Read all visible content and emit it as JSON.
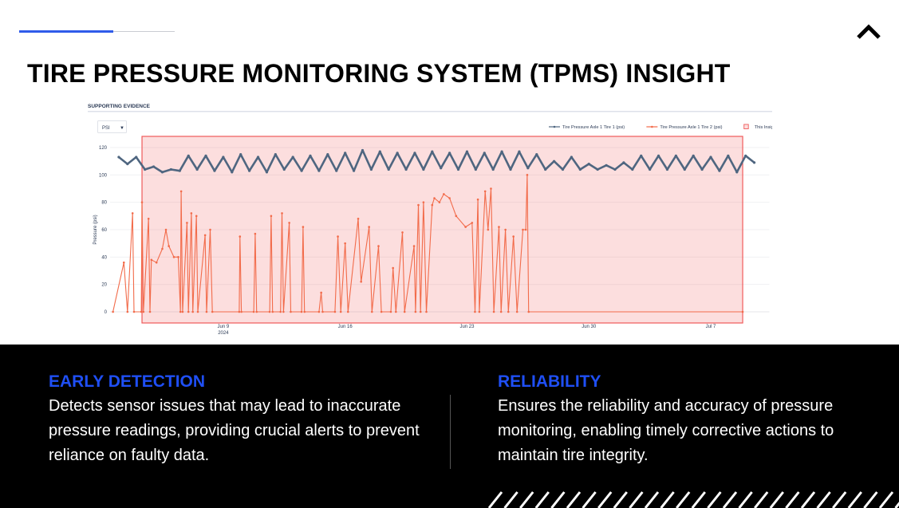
{
  "slide": {
    "title": "TIRE PRESSURE MONITORING SYSTEM (TPMS) INSIGHT",
    "icons": {
      "top_right": "chevron-up-icon"
    },
    "accent_color": "#1f4ff5"
  },
  "evidence": {
    "section_label": "SUPPORTING EVIDENCE",
    "unit_select": "PSI"
  },
  "chart_data": {
    "type": "line",
    "ylabel": "Pressure (psi)",
    "xlabel": "",
    "yticks": [
      0,
      20,
      40,
      60,
      80,
      100,
      120
    ],
    "ytick_labels": [
      "0",
      "20",
      "40",
      "60",
      "80",
      "100",
      "120"
    ],
    "xticks": [
      {
        "date": "2024-06-09 00:00",
        "label": "Jun 9",
        "sublabel": "2024"
      },
      {
        "date": "2024-06-16 00:00",
        "label": "Jun 16"
      },
      {
        "date": "2024-06-23 00:00",
        "label": "Jun 23"
      },
      {
        "date": "2024-06-30 00:00",
        "label": "Jun 30"
      },
      {
        "date": "2024-07-07 00:00",
        "label": "Jul 7"
      }
    ],
    "xlim": [
      "2024-06-02 12:00",
      "2024-07-10 00:00"
    ],
    "ylim": [
      0,
      123
    ],
    "grid": true,
    "legend_placement": "top-right",
    "highlight": {
      "name": "This Insight",
      "start": "2024-06-04 08:00",
      "end": "2024-07-08 20:00",
      "color": "#f05a5a"
    },
    "series": [
      {
        "name": "Tire Pressure Axle 1 Tire 1 (psi)",
        "color": "#4f6680",
        "points": [
          [
            "2024-06-03 00:00",
            113
          ],
          [
            "2024-06-03 12:00",
            108
          ],
          [
            "2024-06-04 00:00",
            113
          ],
          [
            "2024-06-04 12:00",
            104
          ],
          [
            "2024-06-05 00:00",
            106
          ],
          [
            "2024-06-05 12:00",
            102
          ],
          [
            "2024-06-06 00:00",
            104
          ],
          [
            "2024-06-06 12:00",
            103
          ],
          [
            "2024-06-07 00:00",
            114
          ],
          [
            "2024-06-07 12:00",
            104
          ],
          [
            "2024-06-08 00:00",
            114
          ],
          [
            "2024-06-08 12:00",
            103
          ],
          [
            "2024-06-09 00:00",
            113
          ],
          [
            "2024-06-09 12:00",
            102
          ],
          [
            "2024-06-10 00:00",
            115
          ],
          [
            "2024-06-10 12:00",
            103
          ],
          [
            "2024-06-11 00:00",
            113
          ],
          [
            "2024-06-11 12:00",
            102
          ],
          [
            "2024-06-12 00:00",
            115
          ],
          [
            "2024-06-12 12:00",
            104
          ],
          [
            "2024-06-13 00:00",
            113
          ],
          [
            "2024-06-13 12:00",
            103
          ],
          [
            "2024-06-14 00:00",
            114
          ],
          [
            "2024-06-14 12:00",
            103
          ],
          [
            "2024-06-15 00:00",
            115
          ],
          [
            "2024-06-15 12:00",
            103
          ],
          [
            "2024-06-16 00:00",
            116
          ],
          [
            "2024-06-16 12:00",
            103
          ],
          [
            "2024-06-17 00:00",
            118
          ],
          [
            "2024-06-17 12:00",
            104
          ],
          [
            "2024-06-18 00:00",
            117
          ],
          [
            "2024-06-18 12:00",
            104
          ],
          [
            "2024-06-19 00:00",
            116
          ],
          [
            "2024-06-19 12:00",
            104
          ],
          [
            "2024-06-20 00:00",
            116
          ],
          [
            "2024-06-20 12:00",
            104
          ],
          [
            "2024-06-21 00:00",
            117
          ],
          [
            "2024-06-21 12:00",
            105
          ],
          [
            "2024-06-22 00:00",
            116
          ],
          [
            "2024-06-22 12:00",
            104
          ],
          [
            "2024-06-23 00:00",
            117
          ],
          [
            "2024-06-23 12:00",
            104
          ],
          [
            "2024-06-24 00:00",
            116
          ],
          [
            "2024-06-24 12:00",
            104
          ],
          [
            "2024-06-25 00:00",
            117
          ],
          [
            "2024-06-25 12:00",
            104
          ],
          [
            "2024-06-26 00:00",
            117
          ],
          [
            "2024-06-26 12:00",
            105
          ],
          [
            "2024-06-27 00:00",
            115
          ],
          [
            "2024-06-27 12:00",
            104
          ],
          [
            "2024-06-28 00:00",
            110
          ],
          [
            "2024-06-28 12:00",
            104
          ],
          [
            "2024-06-29 00:00",
            113
          ],
          [
            "2024-06-29 12:00",
            104
          ],
          [
            "2024-06-30 00:00",
            108
          ],
          [
            "2024-06-30 12:00",
            104
          ],
          [
            "2024-07-01 00:00",
            107
          ],
          [
            "2024-07-01 12:00",
            104
          ],
          [
            "2024-07-02 00:00",
            109
          ],
          [
            "2024-07-02 12:00",
            104
          ],
          [
            "2024-07-03 00:00",
            114
          ],
          [
            "2024-07-03 12:00",
            104
          ],
          [
            "2024-07-04 00:00",
            114
          ],
          [
            "2024-07-04 12:00",
            104
          ],
          [
            "2024-07-05 00:00",
            114
          ],
          [
            "2024-07-05 12:00",
            104
          ],
          [
            "2024-07-06 00:00",
            114
          ],
          [
            "2024-07-06 12:00",
            104
          ],
          [
            "2024-07-07 00:00",
            113
          ],
          [
            "2024-07-07 12:00",
            103
          ],
          [
            "2024-07-08 00:00",
            114
          ],
          [
            "2024-07-08 12:00",
            102
          ],
          [
            "2024-07-09 00:00",
            114
          ],
          [
            "2024-07-09 12:00",
            109
          ]
        ]
      },
      {
        "name": "Tire Pressure Axle 1 Tire 2 (psi)",
        "color": "#f26b4a",
        "points": [
          [
            "2024-06-02 16:00",
            0
          ],
          [
            "2024-06-03 07:00",
            36
          ],
          [
            "2024-06-03 12:00",
            0
          ],
          [
            "2024-06-03 19:00",
            72
          ],
          [
            "2024-06-03 21:00",
            0
          ],
          [
            "2024-06-04 07:00",
            0
          ],
          [
            "2024-06-04 08:00",
            80
          ],
          [
            "2024-06-04 10:00",
            0
          ],
          [
            "2024-06-04 17:00",
            68
          ],
          [
            "2024-06-04 19:00",
            0
          ],
          [
            "2024-06-04 21:00",
            38
          ],
          [
            "2024-06-05 04:00",
            36
          ],
          [
            "2024-06-05 12:00",
            46
          ],
          [
            "2024-06-05 17:00",
            60
          ],
          [
            "2024-06-05 21:00",
            48
          ],
          [
            "2024-06-06 04:00",
            40
          ],
          [
            "2024-06-06 10:00",
            40
          ],
          [
            "2024-06-06 13:00",
            0
          ],
          [
            "2024-06-06 14:00",
            88
          ],
          [
            "2024-06-06 16:00",
            0
          ],
          [
            "2024-06-06 22:00",
            65
          ],
          [
            "2024-06-07 00:00",
            0
          ],
          [
            "2024-06-07 04:00",
            72
          ],
          [
            "2024-06-07 06:00",
            0
          ],
          [
            "2024-06-07 11:00",
            70
          ],
          [
            "2024-06-07 13:00",
            0
          ],
          [
            "2024-06-07 23:00",
            56
          ],
          [
            "2024-06-08 01:00",
            0
          ],
          [
            "2024-06-08 06:00",
            60
          ],
          [
            "2024-06-08 09:00",
            0
          ],
          [
            "2024-06-09 22:00",
            0
          ],
          [
            "2024-06-09 23:00",
            55
          ],
          [
            "2024-06-10 01:00",
            0
          ],
          [
            "2024-06-10 18:00",
            0
          ],
          [
            "2024-06-10 20:00",
            57
          ],
          [
            "2024-06-10 22:00",
            0
          ],
          [
            "2024-06-11 16:00",
            0
          ],
          [
            "2024-06-11 18:00",
            70
          ],
          [
            "2024-06-11 20:00",
            0
          ],
          [
            "2024-06-12 07:00",
            0
          ],
          [
            "2024-06-12 09:00",
            72
          ],
          [
            "2024-06-12 11:00",
            0
          ],
          [
            "2024-06-12 19:00",
            65
          ],
          [
            "2024-06-12 21:00",
            0
          ],
          [
            "2024-06-13 12:00",
            0
          ],
          [
            "2024-06-13 14:00",
            62
          ],
          [
            "2024-06-13 16:00",
            0
          ],
          [
            "2024-06-14 12:00",
            0
          ],
          [
            "2024-06-14 15:00",
            14
          ],
          [
            "2024-06-14 17:00",
            0
          ],
          [
            "2024-06-15 10:00",
            0
          ],
          [
            "2024-06-15 14:00",
            55
          ],
          [
            "2024-06-15 18:00",
            0
          ],
          [
            "2024-06-16 00:00",
            50
          ],
          [
            "2024-06-16 04:00",
            0
          ],
          [
            "2024-06-16 18:00",
            68
          ],
          [
            "2024-06-16 22:00",
            22
          ],
          [
            "2024-06-17 09:00",
            62
          ],
          [
            "2024-06-17 13:00",
            0
          ],
          [
            "2024-06-17 22:00",
            48
          ],
          [
            "2024-06-18 02:00",
            0
          ],
          [
            "2024-06-18 15:00",
            0
          ],
          [
            "2024-06-18 18:00",
            32
          ],
          [
            "2024-06-18 22:00",
            0
          ],
          [
            "2024-06-19 07:00",
            58
          ],
          [
            "2024-06-19 10:00",
            0
          ],
          [
            "2024-06-19 23:00",
            48
          ],
          [
            "2024-06-20 01:00",
            0
          ],
          [
            "2024-06-20 05:00",
            78
          ],
          [
            "2024-06-20 08:00",
            0
          ],
          [
            "2024-06-20 12:00",
            80
          ],
          [
            "2024-06-20 16:00",
            0
          ],
          [
            "2024-06-21 00:00",
            78
          ],
          [
            "2024-06-21 03:00",
            83
          ],
          [
            "2024-06-21 10:00",
            80
          ],
          [
            "2024-06-21 16:00",
            86
          ],
          [
            "2024-06-22 00:00",
            83
          ],
          [
            "2024-06-22 09:00",
            70
          ],
          [
            "2024-06-22 22:00",
            62
          ],
          [
            "2024-06-23 07:00",
            65
          ],
          [
            "2024-06-23 11:00",
            0
          ],
          [
            "2024-06-23 15:00",
            82
          ],
          [
            "2024-06-23 17:00",
            0
          ],
          [
            "2024-06-24 01:00",
            88
          ],
          [
            "2024-06-24 05:00",
            60
          ],
          [
            "2024-06-24 09:00",
            90
          ],
          [
            "2024-06-24 13:00",
            0
          ],
          [
            "2024-06-24 20:00",
            62
          ],
          [
            "2024-06-24 23:00",
            0
          ],
          [
            "2024-06-25 05:00",
            60
          ],
          [
            "2024-06-25 09:00",
            0
          ],
          [
            "2024-06-25 16:00",
            55
          ],
          [
            "2024-06-25 21:00",
            0
          ],
          [
            "2024-06-26 05:00",
            60
          ],
          [
            "2024-06-26 09:00",
            60
          ],
          [
            "2024-06-26 11:00",
            100
          ],
          [
            "2024-06-26 13:00",
            0
          ],
          [
            "2024-07-08 20:00",
            0
          ]
        ]
      }
    ]
  },
  "cards": [
    {
      "heading": "EARLY DETECTION",
      "body": "Detects sensor issues that may lead to inaccurate pressure readings, providing crucial alerts to prevent reliance on faulty data."
    },
    {
      "heading": "RELIABILITY",
      "body": "Ensures the reliability and accuracy of pressure monitoring, enabling timely corrective actions to maintain tire integrity."
    }
  ]
}
